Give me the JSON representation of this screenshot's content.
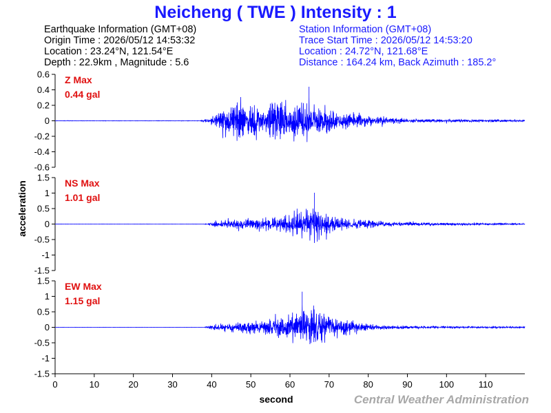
{
  "title": "Neicheng ( TWE ) Intensity : 1",
  "earthquake_info": {
    "heading": "Earthquake Information  (GMT+08)",
    "origin_time": "Origin Time : 2026/05/12 14:53:32",
    "location": "Location : 23.24°N, 121.54°E",
    "depth_magnitude": "Depth : 22.9km , Magnitude : 5.6"
  },
  "station_info": {
    "heading": "Station Information  (GMT+08)",
    "trace_start": "Trace Start Time : 2026/05/12 14:53:20",
    "location": "Location : 24.72°N, 121.68°E",
    "distance_azimuth": "Distance : 164.24 km, Back Azimuth : 185.2°"
  },
  "credit": "Central Weather Administration",
  "colors": {
    "trace": "#0000ff",
    "title": "#1a1aff",
    "max_label": "#e01010",
    "credit": "#a8a8a8"
  },
  "chart_data": [
    {
      "type": "line",
      "panel": "Z",
      "max_label": "Z Max",
      "max_value": "0.44 gal",
      "peak": 0.44,
      "xlim": [
        0,
        120
      ],
      "ylim": [
        -0.6,
        0.6
      ],
      "x_ticks": [],
      "y_ticks": [
        {
          "v": 0.6,
          "label": "0.6"
        },
        {
          "v": 0.4,
          "label": "0.4"
        },
        {
          "v": 0.2,
          "label": "0.2"
        },
        {
          "v": 0,
          "label": "0"
        },
        {
          "v": -0.2,
          "label": "-0.2"
        },
        {
          "v": -0.4,
          "label": "-0.4"
        },
        {
          "v": -0.6,
          "label": "-0.6"
        }
      ],
      "envelope": [
        [
          0,
          0.004
        ],
        [
          37,
          0.004
        ],
        [
          38.5,
          0.03
        ],
        [
          40,
          0.08
        ],
        [
          43,
          0.2
        ],
        [
          45,
          0.32
        ],
        [
          47,
          0.36
        ],
        [
          50,
          0.3
        ],
        [
          55,
          0.34
        ],
        [
          60,
          0.33
        ],
        [
          63,
          0.42
        ],
        [
          65,
          0.38
        ],
        [
          68,
          0.28
        ],
        [
          72,
          0.18
        ],
        [
          76,
          0.15
        ],
        [
          80,
          0.1
        ],
        [
          85,
          0.06
        ],
        [
          90,
          0.04
        ],
        [
          100,
          0.03
        ],
        [
          110,
          0.025
        ],
        [
          120,
          0.022
        ]
      ],
      "seed": 11
    },
    {
      "type": "line",
      "panel": "NS",
      "max_label": "NS Max",
      "max_value": "1.01 gal",
      "peak": 1.01,
      "xlim": [
        0,
        120
      ],
      "ylim": [
        -1.5,
        1.5
      ],
      "x_ticks": [],
      "y_ticks": [
        {
          "v": 1.5,
          "label": "1.5"
        },
        {
          "v": 1,
          "label": "1"
        },
        {
          "v": 0.5,
          "label": "0.5"
        },
        {
          "v": 0,
          "label": "0"
        },
        {
          "v": -0.5,
          "label": "-0.5"
        },
        {
          "v": -1,
          "label": "-1"
        },
        {
          "v": -1.5,
          "label": "-1.5"
        }
      ],
      "envelope": [
        [
          0,
          0.005
        ],
        [
          38,
          0.005
        ],
        [
          39,
          0.04
        ],
        [
          41,
          0.15
        ],
        [
          45,
          0.2
        ],
        [
          50,
          0.25
        ],
        [
          55,
          0.35
        ],
        [
          58,
          0.45
        ],
        [
          61,
          0.6
        ],
        [
          64,
          0.75
        ],
        [
          66,
          0.95
        ],
        [
          68,
          0.65
        ],
        [
          72,
          0.42
        ],
        [
          76,
          0.28
        ],
        [
          80,
          0.2
        ],
        [
          85,
          0.12
        ],
        [
          90,
          0.09
        ],
        [
          100,
          0.07
        ],
        [
          110,
          0.05
        ],
        [
          120,
          0.04
        ]
      ],
      "seed": 23
    },
    {
      "type": "line",
      "panel": "EW",
      "max_label": "EW Max",
      "max_value": "1.15 gal",
      "peak": 1.15,
      "xlim": [
        0,
        120
      ],
      "ylim": [
        -1.5,
        1.5
      ],
      "xlabel": "second",
      "ylabel": "acceleration",
      "x_ticks": [
        {
          "v": 0,
          "label": "0"
        },
        {
          "v": 10,
          "label": "10"
        },
        {
          "v": 20,
          "label": "20"
        },
        {
          "v": 30,
          "label": "30"
        },
        {
          "v": 40,
          "label": "40"
        },
        {
          "v": 50,
          "label": "50"
        },
        {
          "v": 60,
          "label": "60"
        },
        {
          "v": 70,
          "label": "70"
        },
        {
          "v": 80,
          "label": "80"
        },
        {
          "v": 90,
          "label": "90"
        },
        {
          "v": 100,
          "label": "100"
        },
        {
          "v": 110,
          "label": "110"
        }
      ],
      "y_ticks": [
        {
          "v": 1.5,
          "label": "1.5"
        },
        {
          "v": 1,
          "label": "1"
        },
        {
          "v": 0.5,
          "label": "0.5"
        },
        {
          "v": 0,
          "label": "0"
        },
        {
          "v": -0.5,
          "label": "-0.5"
        },
        {
          "v": -1,
          "label": "-1"
        },
        {
          "v": -1.5,
          "label": "-1.5"
        }
      ],
      "envelope": [
        [
          0,
          0.005
        ],
        [
          38,
          0.005
        ],
        [
          39,
          0.05
        ],
        [
          41,
          0.15
        ],
        [
          45,
          0.22
        ],
        [
          50,
          0.3
        ],
        [
          55,
          0.4
        ],
        [
          58,
          0.55
        ],
        [
          61,
          0.7
        ],
        [
          64,
          0.85
        ],
        [
          66,
          1.1
        ],
        [
          68,
          0.75
        ],
        [
          72,
          0.45
        ],
        [
          76,
          0.28
        ],
        [
          80,
          0.18
        ],
        [
          85,
          0.1
        ],
        [
          90,
          0.07
        ],
        [
          100,
          0.05
        ],
        [
          110,
          0.04
        ],
        [
          120,
          0.035
        ]
      ],
      "seed": 37
    }
  ]
}
